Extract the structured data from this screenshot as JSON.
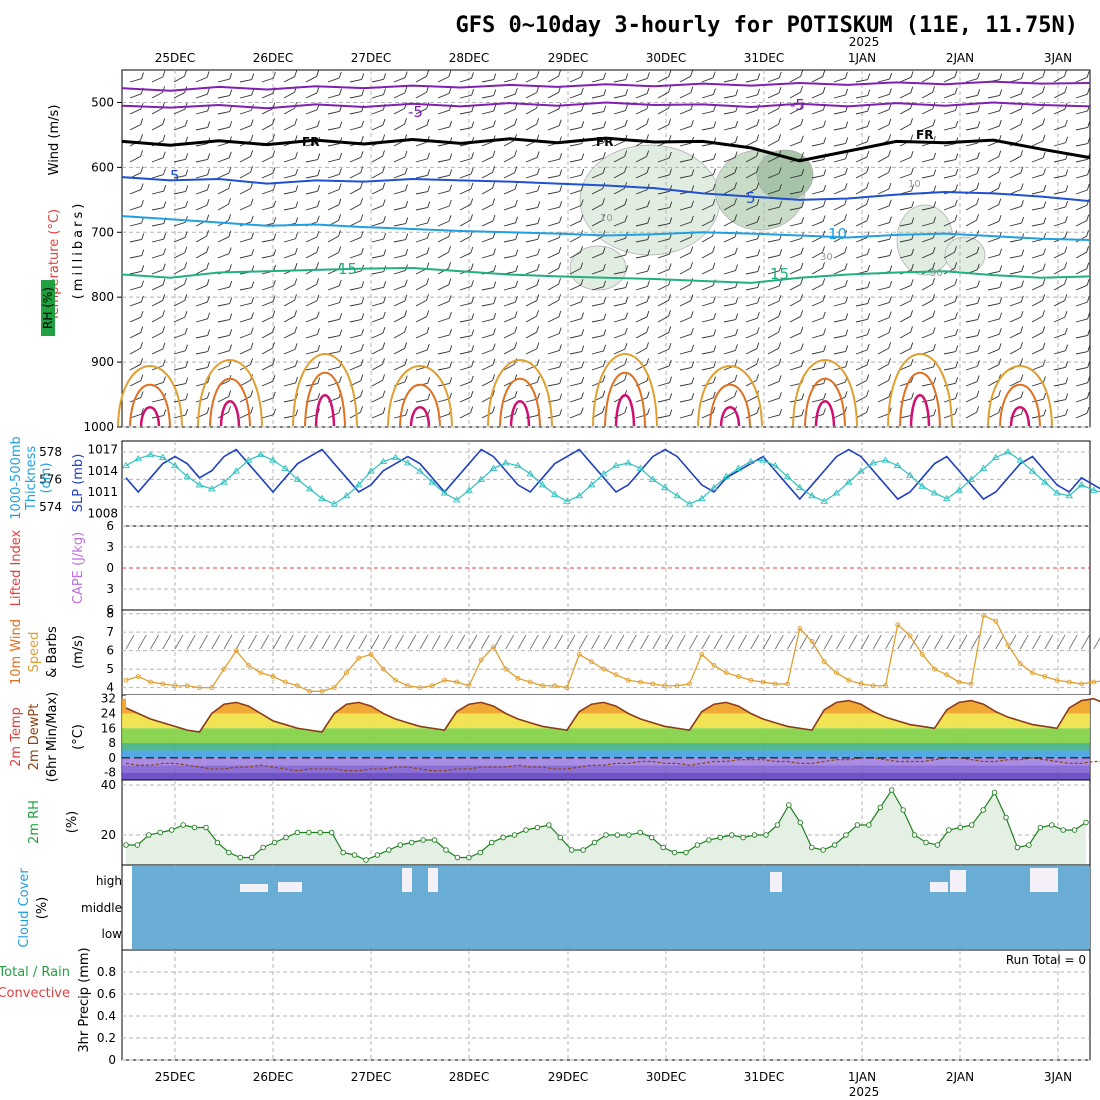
{
  "title": "GFS 0~10day 3-hourly for POTISKUM (11E, 11.75N)",
  "year_label": "2025",
  "date_labels": [
    "25DEC",
    "26DEC",
    "27DEC",
    "28DEC",
    "29DEC",
    "30DEC",
    "31DEC",
    "1JAN",
    "2JAN",
    "3JAN"
  ],
  "run_total": "Run Total = 0",
  "colors": {
    "grid": "#b4b4b4",
    "temp_warm": "#e0a030",
    "temp_15": "#20b080",
    "temp_10": "#20a0e0",
    "temp_5": "#2050d0",
    "temp_neg5": "#8020b0",
    "freezing": "#000000",
    "rh_fill": "#c8dcc8",
    "slp": "#2040c0",
    "thickness": "#30c0c0",
    "wind10m": "#e0a030",
    "rh2m": "#208020",
    "cloud": "#6aaed6",
    "lifted_zero": "#e04040"
  },
  "panel_labels": {
    "upper_wind": "Wind (m/s)",
    "upper_temp": "Temperature (°C)",
    "upper_rh": "RH (%)",
    "upper_p": "(millibars)",
    "thick_a": "1000-500mb",
    "thick_b": "Thickness",
    "thick_unit": "(dm)",
    "slp": "SLP (mb)",
    "li": "Lifted Index",
    "cape": "CAPE (J/kg)",
    "wind10_a": "10m Wind",
    "wind10_b": "Speed",
    "wind10_c": "& Barbs",
    "wind10_unit": "(m/s)",
    "temp2_a": "2m Temp",
    "temp2_b": "2m DewPt",
    "temp2_c": "(6hr Min/Max)",
    "temp2_unit": "(°C)",
    "rh2_a": "2m RH",
    "rh2_unit": "(%)",
    "cloud_a": "Cloud Cover",
    "cloud_unit": "(%)",
    "precip_a": "Total / Rain",
    "precip_b": "Convective",
    "precip_c": "3hr Precip (mm)"
  },
  "contour_labels": {
    "neg5": "-5",
    "fr": "FR",
    "five": "5",
    "ten": "10",
    "fifteen": "15",
    "rh10": "10",
    "rh30": "30"
  },
  "chart_data": [
    {
      "type": "line",
      "name": "upper-air",
      "ylabel": "(millibars)",
      "y_ticks": [
        500,
        600,
        700,
        800,
        900,
        1000
      ],
      "ylim": [
        1000,
        450
      ],
      "isotherms": [
        {
          "label": "-5",
          "pressure": [
            478,
            482,
            476,
            480,
            475,
            478,
            474,
            477,
            473,
            476,
            472,
            475,
            471,
            474,
            470,
            473,
            469,
            472,
            468,
            471,
            470
          ]
        },
        {
          "label": "-5",
          "pressure": [
            505,
            508,
            504,
            509,
            503,
            507,
            502,
            506,
            501,
            505,
            500,
            504,
            503,
            507,
            502,
            506,
            501,
            505,
            500,
            504,
            506
          ]
        },
        {
          "label": "FR",
          "pressure": [
            560,
            566,
            559,
            565,
            558,
            564,
            557,
            563,
            556,
            562,
            555,
            561,
            560,
            570,
            590,
            575,
            560,
            562,
            558,
            572,
            585
          ]
        },
        {
          "label": "5",
          "pressure": [
            615,
            620,
            618,
            625,
            620,
            622,
            618,
            620,
            622,
            625,
            628,
            632,
            640,
            645,
            650,
            648,
            642,
            638,
            640,
            645,
            652
          ]
        },
        {
          "label": "10",
          "pressure": [
            675,
            680,
            685,
            690,
            688,
            692,
            695,
            698,
            700,
            702,
            705,
            703,
            700,
            702,
            705,
            708,
            704,
            702,
            706,
            710,
            712
          ]
        },
        {
          "label": "15",
          "pressure": [
            765,
            770,
            762,
            760,
            758,
            756,
            755,
            760,
            765,
            768,
            770,
            772,
            775,
            778,
            770,
            765,
            762,
            760,
            766,
            770,
            768
          ]
        }
      ],
      "rh_shaded_pct": [
        10,
        30,
        60
      ]
    },
    {
      "type": "line",
      "name": "thickness-slp",
      "x_step_hours": 3,
      "ylabel": "1000-500mb Thickness (dm)",
      "y_ticks_thickness": [
        574,
        576,
        578
      ],
      "y_ticks_slp": [
        1008,
        1011,
        1014,
        1017
      ],
      "series": [
        {
          "name": "SLP (mb)",
          "values": [
            1013,
            1011,
            1013,
            1015,
            1016,
            1015,
            1013,
            1014,
            1016,
            1017,
            1015,
            1013,
            1011,
            1013,
            1015,
            1016,
            1017,
            1015,
            1013,
            1011,
            1012,
            1014,
            1015,
            1016,
            1015,
            1013,
            1011,
            1013,
            1015,
            1017,
            1016,
            1014,
            1012,
            1011,
            1013,
            1015,
            1016,
            1017,
            1015,
            1013,
            1011,
            1012,
            1014,
            1016,
            1017,
            1016,
            1014,
            1012,
            1011,
            1013,
            1014,
            1015,
            1016,
            1014,
            1012,
            1010,
            1012,
            1014,
            1016,
            1017,
            1016,
            1014,
            1012,
            1010,
            1011,
            1013,
            1015,
            1016,
            1014,
            1012,
            1010,
            1011,
            1013,
            1015,
            1016,
            1014,
            1012,
            1011,
            1013,
            1012,
            1011
          ]
        },
        {
          "name": "1000-500mb Thickness (dm)",
          "values": [
            577,
            577.5,
            577.8,
            577.6,
            577,
            576.2,
            575.6,
            575.3,
            575.8,
            576.6,
            577.4,
            577.8,
            577.4,
            576.8,
            576,
            575.3,
            574.6,
            574.2,
            574.8,
            575.6,
            576.6,
            577.3,
            577.6,
            577.2,
            576.6,
            575.8,
            575,
            574.5,
            575.2,
            576,
            576.8,
            577.2,
            577,
            576.4,
            575.6,
            574.9,
            574.4,
            574.8,
            575.6,
            576.4,
            577,
            577.2,
            576.8,
            576,
            575.4,
            574.8,
            574.2,
            574.6,
            575.4,
            576.2,
            576.8,
            577.3,
            577.4,
            577,
            576.2,
            575.4,
            574.8,
            574.4,
            575,
            575.8,
            576.6,
            577.2,
            577.4,
            577,
            576.3,
            575.5,
            575,
            574.6,
            575.2,
            576,
            576.8,
            577.6,
            578,
            577.4,
            576.6,
            575.8,
            575,
            574.8,
            575.6,
            575.2,
            575
          ]
        }
      ]
    },
    {
      "type": "line",
      "name": "lifted-index-cape",
      "ylabel": "Lifted Index / CAPE (J/kg)",
      "y_ticks": [
        -6,
        -3,
        0,
        3,
        6
      ],
      "ylim": [
        6,
        -6
      ]
    },
    {
      "type": "line",
      "name": "wind-10m",
      "x_step_hours": 3,
      "ylabel": "10m Wind Speed & Barbs (m/s)",
      "y_ticks": [
        4,
        5,
        6,
        7,
        8
      ],
      "ylim": [
        3.6,
        8.2
      ],
      "series": [
        {
          "name": "10m Wind Speed",
          "values": [
            4.4,
            4.6,
            4.3,
            4.2,
            4.1,
            4.1,
            4,
            4,
            5,
            6,
            5.2,
            4.8,
            4.6,
            4.3,
            4.1,
            3.8,
            3.8,
            4,
            4.8,
            5.6,
            5.8,
            5,
            4.4,
            4.1,
            4,
            4.1,
            4.4,
            4.3,
            4.1,
            5.5,
            6.2,
            5,
            4.5,
            4.3,
            4.1,
            4.1,
            4,
            5.8,
            5.4,
            5,
            4.7,
            4.4,
            4.3,
            4.2,
            4.1,
            4.1,
            4.2,
            5.8,
            5.2,
            4.8,
            4.6,
            4.4,
            4.3,
            4.2,
            4.2,
            7.2,
            6.5,
            5.4,
            4.8,
            4.4,
            4.2,
            4.1,
            4.1,
            7.4,
            6.8,
            5.8,
            5,
            4.7,
            4.3,
            4.2,
            7.9,
            7.6,
            6.3,
            5.3,
            4.8,
            4.6,
            4.4,
            4.3,
            4.2,
            4.3,
            4.4
          ]
        }
      ]
    },
    {
      "type": "area",
      "name": "temp-2m",
      "x_step_hours": 3,
      "ylabel": "2m Temp / 2m DewPt (°C)",
      "y_ticks": [
        -8,
        0,
        8,
        16,
        24,
        32
      ],
      "ylim": [
        -12,
        34
      ],
      "series": [
        {
          "name": "2m Temp",
          "values": [
            27,
            24,
            21,
            19,
            17,
            15,
            14,
            24,
            29,
            30,
            28,
            24,
            20,
            18,
            16,
            15,
            14,
            24,
            29,
            30,
            28,
            24,
            21,
            19,
            17,
            16,
            15,
            25,
            29,
            30,
            28,
            24,
            21,
            19,
            17,
            16,
            15,
            25,
            29,
            30,
            28,
            24,
            21,
            19,
            17,
            16,
            15,
            25,
            29,
            30,
            28,
            24,
            21,
            19,
            17,
            16,
            15,
            26,
            30,
            31,
            29,
            25,
            22,
            20,
            18,
            17,
            16,
            26,
            30,
            31,
            29,
            25,
            22,
            20,
            18,
            17,
            16,
            27,
            31,
            32,
            29
          ]
        },
        {
          "name": "2m DewPt",
          "values": [
            -3,
            -4,
            -4,
            -3,
            -3,
            -4,
            -5,
            -6,
            -6,
            -5,
            -5,
            -4,
            -5,
            -6,
            -7,
            -6,
            -6,
            -6,
            -7,
            -7,
            -6,
            -6,
            -5,
            -5,
            -6,
            -7,
            -7,
            -6,
            -6,
            -5,
            -5,
            -5,
            -4,
            -5,
            -5,
            -6,
            -6,
            -5,
            -4,
            -4,
            -3,
            -3,
            -2,
            -2,
            -3,
            -3,
            -4,
            -3,
            -2,
            -2,
            -1,
            -1,
            -1,
            -2,
            -2,
            -3,
            -3,
            -2,
            -1,
            -1,
            0,
            0,
            -1,
            -2,
            -2,
            -2,
            -1,
            0,
            0,
            -1,
            -2,
            -2,
            -1,
            -1,
            0,
            -1,
            -2,
            -3,
            -3,
            -2,
            -2
          ]
        }
      ]
    },
    {
      "type": "area",
      "name": "rh-2m",
      "x_step_hours": 3,
      "ylabel": "2m RH (%)",
      "y_ticks": [
        20,
        40
      ],
      "ylim": [
        8,
        42
      ],
      "series": [
        {
          "name": "2m RH",
          "values": [
            16,
            16,
            20,
            21,
            22,
            24,
            23,
            23,
            17,
            13,
            11,
            11,
            15,
            17,
            19,
            21,
            21,
            21,
            21,
            13,
            12,
            10,
            12,
            14,
            16,
            17,
            18,
            18,
            14,
            11,
            11,
            13,
            17,
            19,
            20,
            22,
            23,
            24,
            19,
            14,
            14,
            17,
            20,
            20,
            20,
            21,
            19,
            15,
            13,
            13,
            16,
            18,
            19,
            20,
            19,
            20,
            20,
            24,
            32,
            25,
            15,
            14,
            16,
            20,
            24,
            24,
            31,
            38,
            30,
            20,
            17,
            16,
            22,
            23,
            24,
            30,
            37,
            27,
            15,
            16,
            23,
            24,
            22,
            22,
            25
          ]
        }
      ]
    },
    {
      "type": "bar",
      "name": "cloud-cover",
      "ylabel": "Cloud Cover (%)",
      "y_ticks": [
        "low",
        "middle",
        "high"
      ]
    },
    {
      "type": "bar",
      "name": "precip",
      "ylabel": "3hr Precip (mm)",
      "y_ticks": [
        0,
        0.2,
        0.4,
        0.6,
        0.8
      ],
      "ylim": [
        0,
        1
      ]
    }
  ]
}
